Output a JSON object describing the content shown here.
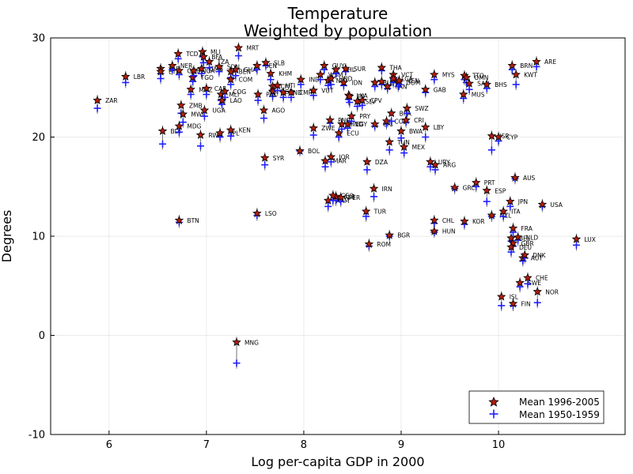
{
  "chart_data": {
    "type": "scatter",
    "title": "Temperature",
    "subtitle": "Weighted by population",
    "xlabel": "Log per-capita GDP in 2000",
    "ylabel": "Degrees",
    "xlim": [
      5.4,
      11.3
    ],
    "ylim": [
      -10,
      30
    ],
    "xticks": [
      6,
      7,
      8,
      9,
      10
    ],
    "yticks": [
      -10,
      0,
      10,
      20,
      30
    ],
    "grid": true,
    "legend_position": "bottom-right",
    "legend": [
      "Mean 1996-2005",
      "Mean 1950-1959"
    ],
    "colors": {
      "mean_1996_2005": "#b11d0c",
      "mean_1950_1959": "#1f1fff"
    },
    "points": [
      {
        "label": "ZAR",
        "x": 5.88,
        "y": 23.7,
        "y50": 22.9
      },
      {
        "label": "LBR",
        "x": 6.17,
        "y": 26.1,
        "y50": 25.5
      },
      {
        "label": "BDI",
        "x": 6.55,
        "y": 20.6,
        "y50": 19.3
      },
      {
        "label": "SLE",
        "x": 6.53,
        "y": 26.9,
        "y50": 26.4
      },
      {
        "label": "ETH",
        "x": 6.53,
        "y": 26.6,
        "y50": 25.9
      },
      {
        "label": "NER",
        "x": 6.65,
        "y": 27.2,
        "y50": 26.8
      },
      {
        "label": "GNB",
        "x": 6.72,
        "y": 26.7,
        "y50": 26.3
      },
      {
        "label": "TCD",
        "x": 6.71,
        "y": 28.4,
        "y50": 27.9
      },
      {
        "label": "MDG",
        "x": 6.72,
        "y": 21.1,
        "y50": 20.5
      },
      {
        "label": "ZMB",
        "x": 6.74,
        "y": 23.2,
        "y50": 22.4
      },
      {
        "label": "MWI",
        "x": 6.76,
        "y": 22.3,
        "y50": 21.5
      },
      {
        "label": "BTN",
        "x": 6.72,
        "y": 11.6,
        "y50": 11.4
      },
      {
        "label": "TGO",
        "x": 6.86,
        "y": 26.0,
        "y50": 25.6
      },
      {
        "label": "MOZ",
        "x": 6.84,
        "y": 24.8,
        "y50": 24.3
      },
      {
        "label": "NGA",
        "x": 6.87,
        "y": 26.7,
        "y50": 26.2
      },
      {
        "label": "GMB",
        "x": 6.95,
        "y": 26.9,
        "y50": 26.4
      },
      {
        "label": "RWA",
        "x": 6.94,
        "y": 20.2,
        "y50": 19.1
      },
      {
        "label": "MLI",
        "x": 6.96,
        "y": 28.6,
        "y50": 28.1
      },
      {
        "label": "BFA",
        "x": 6.97,
        "y": 28.1,
        "y50": 27.5
      },
      {
        "label": "UGA",
        "x": 6.98,
        "y": 22.7,
        "y50": 22.1
      },
      {
        "label": "CAF",
        "x": 7.0,
        "y": 24.9,
        "y50": 24.3
      },
      {
        "label": "TZA",
        "x": 7.03,
        "y": 27.6,
        "y50": 27.0
      },
      {
        "label": "SDN",
        "x": 7.13,
        "y": 27.1,
        "y50": 26.6
      },
      {
        "label": "MRT",
        "x": 7.33,
        "y": 29.0,
        "y50": 28.2
      },
      {
        "label": "NPL",
        "x": 7.14,
        "y": 20.4,
        "y50": 20.0
      },
      {
        "label": "KEN",
        "x": 7.25,
        "y": 20.7,
        "y50": 20.1
      },
      {
        "label": "MLI2",
        "x": 7.15,
        "y": 24.3,
        "y50": 23.7
      },
      {
        "label": "COG",
        "x": 7.19,
        "y": 24.6,
        "y50": 24.0
      },
      {
        "label": "LAO",
        "x": 7.16,
        "y": 23.7,
        "y50": 23.3
      },
      {
        "label": "GHA",
        "x": 7.3,
        "y": 26.8,
        "y50": 26.2
      },
      {
        "label": "BEN",
        "x": 7.25,
        "y": 26.6,
        "y50": 26.0
      },
      {
        "label": "COM",
        "x": 7.25,
        "y": 25.8,
        "y50": 25.3
      },
      {
        "label": "MNG",
        "x": 7.31,
        "y": -0.7,
        "y50": -2.8
      },
      {
        "label": "LSO",
        "x": 7.52,
        "y": 12.3,
        "y50": 12.1
      },
      {
        "label": "SEN",
        "x": 7.52,
        "y": 27.2,
        "y50": 26.8
      },
      {
        "label": "SLB",
        "x": 7.61,
        "y": 27.5,
        "y50": 27.2
      },
      {
        "label": "AGO",
        "x": 7.59,
        "y": 22.7,
        "y50": 21.9
      },
      {
        "label": "SYR",
        "x": 7.6,
        "y": 17.9,
        "y50": 17.2
      },
      {
        "label": "KHM",
        "x": 7.66,
        "y": 26.4,
        "y50": 25.8
      },
      {
        "label": "CIV",
        "x": 7.68,
        "y": 25.1,
        "y50": 24.6
      },
      {
        "label": "BGD",
        "x": 7.68,
        "y": 24.6,
        "y50": 24.1
      },
      {
        "label": "IND",
        "x": 7.79,
        "y": 24.5,
        "y50": 24.0
      },
      {
        "label": "CMR",
        "x": 7.87,
        "y": 24.5,
        "y50": 24.0
      },
      {
        "label": "PAK",
        "x": 7.53,
        "y": 24.3,
        "y50": 23.7
      },
      {
        "label": "HTI",
        "x": 7.73,
        "y": 25.2,
        "y50": 24.7
      },
      {
        "label": "BOL",
        "x": 7.96,
        "y": 18.6,
        "y50": 18.6
      },
      {
        "label": "IND2",
        "x": 7.97,
        "y": 25.8,
        "y50": 25.3
      },
      {
        "label": "VUT",
        "x": 8.1,
        "y": 24.7,
        "y50": 24.2
      },
      {
        "label": "ZWE",
        "x": 8.1,
        "y": 20.9,
        "y50": 20.2
      },
      {
        "label": "WSM",
        "x": 8.17,
        "y": 26.3,
        "y50": 25.8
      },
      {
        "label": "GUY",
        "x": 8.21,
        "y": 27.2,
        "y50": 26.8
      },
      {
        "label": "NIC",
        "x": 8.25,
        "y": 25.7,
        "y50": 25.2
      },
      {
        "label": "HND",
        "x": 8.28,
        "y": 25.9,
        "y50": 25.3
      },
      {
        "label": "MAR",
        "x": 8.22,
        "y": 17.6,
        "y50": 17.0
      },
      {
        "label": "JOR",
        "x": 8.28,
        "y": 18.0,
        "y50": 17.5
      },
      {
        "label": "ARM",
        "x": 8.25,
        "y": 13.6,
        "y50": 13.0
      },
      {
        "label": "ALB",
        "x": 8.33,
        "y": 14.0,
        "y50": 13.6
      },
      {
        "label": "GEO",
        "x": 8.3,
        "y": 14.1,
        "y50": 13.6
      },
      {
        "label": "PER",
        "x": 8.38,
        "y": 13.9,
        "y50": 13.5
      },
      {
        "label": "PHL",
        "x": 8.33,
        "y": 26.8,
        "y50": 26.4
      },
      {
        "label": "SUR",
        "x": 8.43,
        "y": 26.9,
        "y50": 26.6
      },
      {
        "label": "IDN",
        "x": 8.41,
        "y": 25.5,
        "y50": 25.2
      },
      {
        "label": "PNG",
        "x": 8.27,
        "y": 21.7,
        "y50": 21.4
      },
      {
        "label": "ECU",
        "x": 8.36,
        "y": 20.4,
        "y50": 20.0
      },
      {
        "label": "HND2",
        "x": 8.39,
        "y": 21.3,
        "y50": 20.8
      },
      {
        "label": "EGY",
        "x": 8.45,
        "y": 21.3,
        "y50": 20.9
      },
      {
        "label": "PRY",
        "x": 8.49,
        "y": 22.1,
        "y50": 21.6
      },
      {
        "label": "LKA",
        "x": 8.46,
        "y": 24.2,
        "y50": 23.8
      },
      {
        "label": "FJI",
        "x": 8.47,
        "y": 24.1,
        "y50": 23.5
      },
      {
        "label": "SLV",
        "x": 8.55,
        "y": 23.6,
        "y50": 23.1
      },
      {
        "label": "CPV",
        "x": 8.6,
        "y": 23.7,
        "y50": 23.2
      },
      {
        "label": "DZA",
        "x": 8.65,
        "y": 17.5,
        "y50": 16.7
      },
      {
        "label": "TUR",
        "x": 8.64,
        "y": 12.5,
        "y50": 12.0
      },
      {
        "label": "IRN",
        "x": 8.72,
        "y": 14.8,
        "y50": 14.0
      },
      {
        "label": "CRI",
        "x": 8.73,
        "y": 21.3,
        "y50": 21.1
      },
      {
        "label": "THA",
        "x": 8.8,
        "y": 27.0,
        "y50": 26.7
      },
      {
        "label": "BLZ",
        "x": 8.73,
        "y": 25.5,
        "y50": 25.1
      },
      {
        "label": "JAM",
        "x": 8.8,
        "y": 25.6,
        "y50": 25.3
      },
      {
        "label": "PAN",
        "x": 8.86,
        "y": 25.1,
        "y50": 24.9
      },
      {
        "label": "VCT",
        "x": 8.92,
        "y": 26.3,
        "y50": 25.9
      },
      {
        "label": "LCA",
        "x": 8.92,
        "y": 25.9,
        "y50": 25.5
      },
      {
        "label": "DOM",
        "x": 8.97,
        "y": 25.5,
        "y50": 25.1
      },
      {
        "label": "VEN",
        "x": 8.98,
        "y": 25.7,
        "y50": 25.3
      },
      {
        "label": "COL",
        "x": 8.85,
        "y": 21.6,
        "y50": 21.3
      },
      {
        "label": "BRA",
        "x": 8.9,
        "y": 22.4,
        "y50": 21.6
      },
      {
        "label": "TUN",
        "x": 8.88,
        "y": 19.5,
        "y50": 18.7
      },
      {
        "label": "MEX",
        "x": 9.03,
        "y": 19.0,
        "y50": 18.4
      },
      {
        "label": "BWA",
        "x": 9.0,
        "y": 20.6,
        "y50": 19.9
      },
      {
        "label": "CRI2",
        "x": 9.05,
        "y": 21.7,
        "y50": 21.5
      },
      {
        "label": "SWZ",
        "x": 9.06,
        "y": 22.9,
        "y50": 22.4
      },
      {
        "label": "BGR",
        "x": 8.88,
        "y": 10.1,
        "y50": 10.0
      },
      {
        "label": "ROM",
        "x": 8.67,
        "y": 9.2,
        "y50": 9.0
      },
      {
        "label": "GAB",
        "x": 9.25,
        "y": 24.8,
        "y50": 24.5
      },
      {
        "label": "LBY",
        "x": 9.25,
        "y": 21.0,
        "y50": 20.0
      },
      {
        "label": "MYS",
        "x": 9.34,
        "y": 26.3,
        "y50": 25.8
      },
      {
        "label": "URY",
        "x": 9.3,
        "y": 17.5,
        "y50": 17.0
      },
      {
        "label": "ARG",
        "x": 9.35,
        "y": 17.2,
        "y50": 16.7
      },
      {
        "label": "CHL",
        "x": 9.34,
        "y": 11.6,
        "y50": 11.3
      },
      {
        "label": "HUN",
        "x": 9.34,
        "y": 10.5,
        "y50": 10.4
      },
      {
        "label": "GRC",
        "x": 9.55,
        "y": 14.9,
        "y50": 14.8
      },
      {
        "label": "TTO",
        "x": 9.65,
        "y": 26.2,
        "y50": 25.8
      },
      {
        "label": "MUS",
        "x": 9.64,
        "y": 24.3,
        "y50": 23.9
      },
      {
        "label": "OMN",
        "x": 9.67,
        "y": 26.0,
        "y50": 25.5
      },
      {
        "label": "SAU",
        "x": 9.7,
        "y": 25.4,
        "y50": 24.8
      },
      {
        "label": "KOR",
        "x": 9.65,
        "y": 11.5,
        "y50": 11.2
      },
      {
        "label": "PRT",
        "x": 9.77,
        "y": 15.4,
        "y50": 15.0
      },
      {
        "label": "BHS",
        "x": 9.88,
        "y": 25.3,
        "y50": 24.9
      },
      {
        "label": "ESP",
        "x": 9.88,
        "y": 14.6,
        "y50": 13.5
      },
      {
        "label": "NZL",
        "x": 9.93,
        "y": 12.1,
        "y50": 12.0
      },
      {
        "label": "ISR",
        "x": 9.93,
        "y": 20.1,
        "y50": 18.7
      },
      {
        "label": "CYP",
        "x": 10.0,
        "y": 20.0,
        "y50": 19.6
      },
      {
        "label": "ITA",
        "x": 10.05,
        "y": 12.5,
        "y50": 12.0
      },
      {
        "label": "JPN",
        "x": 10.12,
        "y": 13.5,
        "y50": 13.0
      },
      {
        "label": "AUS",
        "x": 10.17,
        "y": 15.9,
        "y50": 15.8
      },
      {
        "label": "FRA",
        "x": 10.15,
        "y": 10.8,
        "y50": 10.4
      },
      {
        "label": "BEL",
        "x": 10.13,
        "y": 9.8,
        "y50": 9.5
      },
      {
        "label": "GBR",
        "x": 10.15,
        "y": 9.3,
        "y50": 9.0
      },
      {
        "label": "DEU",
        "x": 10.13,
        "y": 8.9,
        "y50": 8.4
      },
      {
        "label": "NLD",
        "x": 10.2,
        "y": 9.9,
        "y50": 9.6
      },
      {
        "label": "AUT",
        "x": 10.25,
        "y": 7.8,
        "y50": 7.5
      },
      {
        "label": "DNK",
        "x": 10.27,
        "y": 8.1,
        "y50": 7.8
      },
      {
        "label": "SWE",
        "x": 10.22,
        "y": 5.3,
        "y50": 4.9
      },
      {
        "label": "CHE",
        "x": 10.3,
        "y": 5.8,
        "y50": 5.2
      },
      {
        "label": "FIN",
        "x": 10.15,
        "y": 3.2,
        "y50": 3.0
      },
      {
        "label": "ISL",
        "x": 10.03,
        "y": 3.9,
        "y50": 3.0
      },
      {
        "label": "NOR",
        "x": 10.4,
        "y": 4.4,
        "y50": 3.3
      },
      {
        "label": "USA",
        "x": 10.45,
        "y": 13.2,
        "y50": 13.0
      },
      {
        "label": "KWT",
        "x": 10.18,
        "y": 26.3,
        "y50": 25.3
      },
      {
        "label": "BRN",
        "x": 10.14,
        "y": 27.2,
        "y50": 26.8
      },
      {
        "label": "ARE",
        "x": 10.39,
        "y": 27.6,
        "y50": 27.1
      },
      {
        "label": "LUX",
        "x": 10.8,
        "y": 9.7,
        "y50": 9.1
      }
    ]
  }
}
